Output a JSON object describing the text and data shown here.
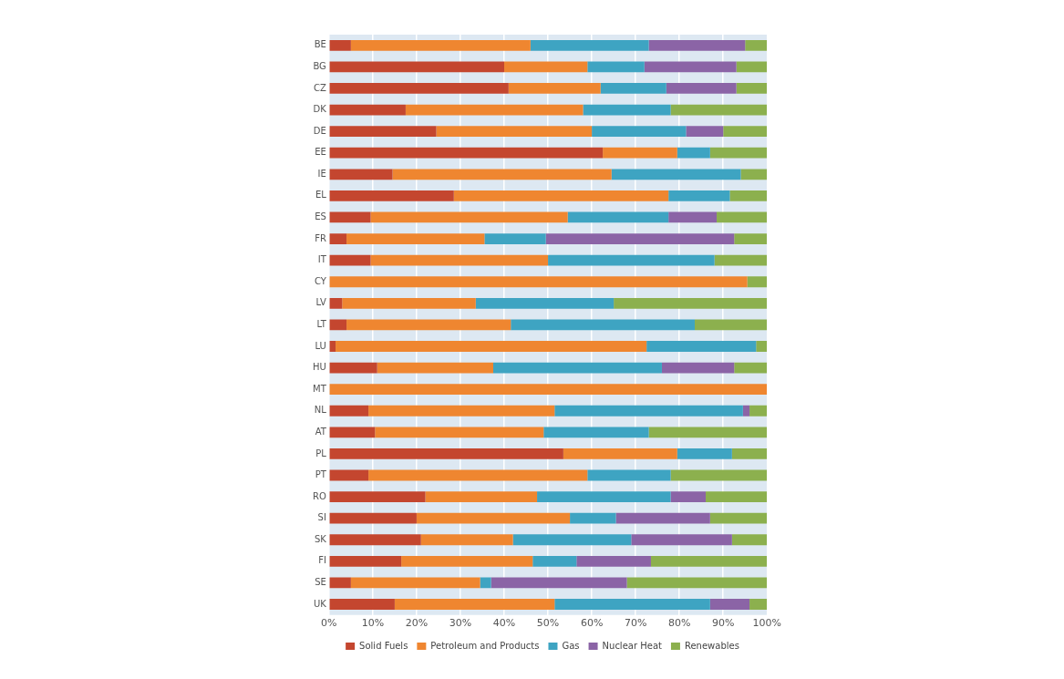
{
  "chart_data": {
    "type": "bar",
    "orientation": "horizontal",
    "stacked": true,
    "categories": [
      "BE",
      "BG",
      "CZ",
      "DK",
      "DE",
      "EE",
      "IE",
      "EL",
      "ES",
      "FR",
      "IT",
      "CY",
      "LV",
      "LT",
      "LU",
      "HU",
      "MT",
      "NL",
      "AT",
      "PL",
      "PT",
      "RO",
      "SI",
      "SK",
      "FI",
      "SE",
      "UK"
    ],
    "series": [
      {
        "name": "Solid Fuels",
        "color": "#c4462f",
        "values": [
          5,
          40,
          41,
          17.5,
          24.5,
          62.5,
          14.5,
          28.5,
          9.5,
          4,
          9.5,
          0,
          3,
          4,
          1.5,
          11,
          0,
          9,
          10.5,
          53.5,
          9,
          22,
          20,
          21,
          16.5,
          5,
          15
        ]
      },
      {
        "name": "Petroleum and Products",
        "color": "#ef8630",
        "values": [
          41,
          19,
          21,
          40.5,
          35.5,
          17,
          50,
          49,
          45,
          31.5,
          40.5,
          95.5,
          30.5,
          37.5,
          71,
          26.5,
          100,
          42.5,
          38.5,
          26,
          50,
          25.5,
          35,
          21,
          30,
          29.5,
          36.5
        ]
      },
      {
        "name": "Gas",
        "color": "#3ea4c2",
        "values": [
          27,
          13,
          15,
          20,
          21.5,
          7.5,
          29.5,
          14,
          23,
          14,
          38,
          0,
          31.5,
          42,
          25,
          38.5,
          0,
          43,
          24,
          12.5,
          19,
          30.5,
          10.5,
          27,
          10,
          2.5,
          35.5
        ]
      },
      {
        "name": "Nuclear Heat",
        "color": "#8b64a6",
        "values": [
          22,
          21,
          16,
          0,
          8.5,
          0,
          0,
          0,
          11,
          43,
          0,
          0,
          0,
          0,
          0,
          16.5,
          0,
          1.5,
          0,
          0,
          0,
          8,
          21.5,
          23,
          17,
          31,
          9
        ]
      },
      {
        "name": "Renewables",
        "color": "#8cb04e",
        "values": [
          5,
          7,
          7,
          22,
          10,
          13,
          6,
          8.5,
          11.5,
          7.5,
          12,
          4.5,
          35,
          16.5,
          2.5,
          7.5,
          0,
          4,
          27,
          8,
          22,
          14,
          13,
          8,
          26.5,
          32,
          4
        ]
      }
    ],
    "xlim": [
      0,
      100
    ],
    "xticks": [
      {
        "value": 0,
        "label": "0%"
      },
      {
        "value": 10,
        "label": "10%"
      },
      {
        "value": 20,
        "label": "20%"
      },
      {
        "value": 30,
        "label": "30%"
      },
      {
        "value": 40,
        "label": "40%"
      },
      {
        "value": 50,
        "label": "50%"
      },
      {
        "value": 60,
        "label": "60%"
      },
      {
        "value": 70,
        "label": "70%"
      },
      {
        "value": 80,
        "label": "80%"
      },
      {
        "value": 90,
        "label": "90%"
      },
      {
        "value": 100,
        "label": "100%"
      }
    ],
    "grid": "x",
    "legend": "bottom"
  }
}
